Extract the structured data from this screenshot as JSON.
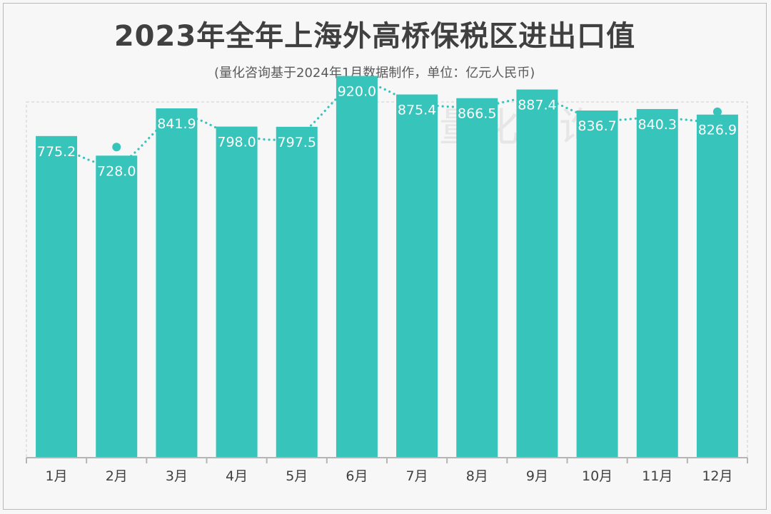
{
  "chart_data": {
    "type": "bar",
    "title": "2023年全年上海外高桥保税区进出口值",
    "subtitle": "(量化咨询基于2024年1月数据制作，单位：亿元人民币)",
    "categories": [
      "1月",
      "2月",
      "3月",
      "4月",
      "5月",
      "6月",
      "7月",
      "8月",
      "9月",
      "10月",
      "11月",
      "12月"
    ],
    "series": [
      {
        "values": [
          775.2,
          728.0,
          841.9,
          798.0,
          797.5,
          920.0,
          875.4,
          866.5,
          887.4,
          836.7,
          840.3,
          826.9
        ]
      }
    ],
    "trend_line": "dotted",
    "ylim": [
      0,
      1000
    ],
    "grid": false,
    "colors": {
      "bar": "#36c4bb",
      "trend": "#36c4bb",
      "axis": "#b5b5b5",
      "label": "#ffffff",
      "text": "#404040"
    },
    "watermark": "量化咨询"
  }
}
